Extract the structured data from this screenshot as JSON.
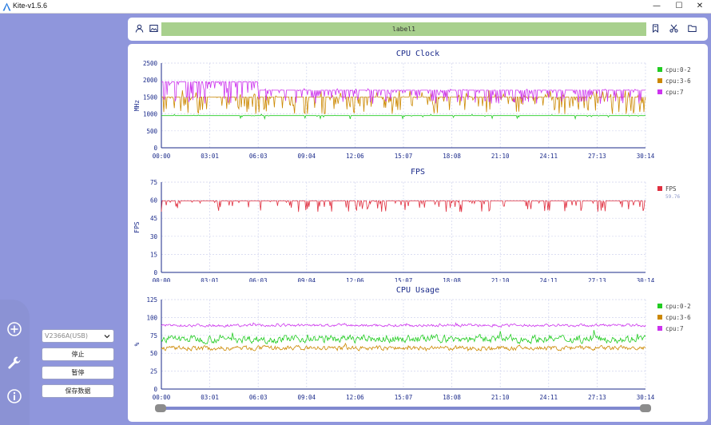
{
  "window": {
    "title": "Kite-v1.5.6",
    "minimize": "—",
    "maximize": "☐",
    "close": "✕"
  },
  "toolbar": {
    "label": "label1"
  },
  "sidebar": {
    "icons": [
      "add-circle-icon",
      "wrench-icon",
      "info-icon"
    ]
  },
  "controls": {
    "device_select": "V2366A(USB)",
    "stop": "停止",
    "pause": "暂停",
    "save": "保存数据"
  },
  "colors": {
    "green": "#22cc22",
    "orange": "#cc8800",
    "purple": "#cc33ee",
    "red": "#e03040",
    "axis": "#1a2a8a",
    "grid": "#d0d4ee"
  },
  "x_ticks": [
    "00:00",
    "03:01",
    "06:03",
    "09:04",
    "12:06",
    "15:07",
    "18:08",
    "21:10",
    "24:11",
    "27:13",
    "30:14"
  ],
  "chart_data": [
    {
      "type": "line",
      "title": "CPU Clock",
      "ylabel": "MHz",
      "ylim": [
        0,
        2500
      ],
      "yticks": [
        "0",
        "500",
        "1000",
        "1500",
        "2000",
        "2500"
      ],
      "x_range_minutes": [
        0,
        30.23
      ],
      "series": [
        {
          "name": "cpu:0-2",
          "color": "#22cc22",
          "base": 950,
          "dips": 0.05,
          "dip_to": 850,
          "peak": 0.02,
          "peak_to": 1000
        },
        {
          "name": "cpu:3-6",
          "color": "#cc8800",
          "base": 1500,
          "dips": 0.25,
          "dip_to": 1000,
          "peak": 0.1,
          "peak_to": 1700
        },
        {
          "name": "cpu:7",
          "color": "#cc33ee",
          "base": 1700,
          "early_base": 1950,
          "early_until_minutes": 6.0,
          "dips": 0.3,
          "dip_to": 1300,
          "peak": 0.05,
          "peak_to": 1750
        }
      ],
      "legend": "right"
    },
    {
      "type": "line",
      "title": "FPS",
      "ylabel": "FPS",
      "ylim": [
        0,
        75
      ],
      "yticks": [
        "0",
        "15",
        "30",
        "45",
        "60",
        "75"
      ],
      "x_range_minutes": [
        0,
        30.23
      ],
      "series": [
        {
          "name": "FPS",
          "color": "#e03040",
          "base": 59.5,
          "dips": 0.18,
          "dip_to": 50,
          "peak": 0,
          "peak_to": 60,
          "legend_value": "59.76"
        }
      ],
      "legend": "right"
    },
    {
      "type": "line",
      "title": "CPU Usage",
      "ylabel": "%",
      "ylim": [
        0,
        125
      ],
      "yticks": [
        "0",
        "25",
        "50",
        "75",
        "100",
        "125"
      ],
      "x_range_minutes": [
        0,
        30.23
      ],
      "series": [
        {
          "name": "cpu:0-2",
          "color": "#22cc22",
          "base": 70,
          "noise": 8
        },
        {
          "name": "cpu:3-6",
          "color": "#cc8800",
          "base": 57,
          "noise": 5
        },
        {
          "name": "cpu:7",
          "color": "#cc33ee",
          "base": 89,
          "noise": 3
        }
      ],
      "legend": "right"
    }
  ]
}
